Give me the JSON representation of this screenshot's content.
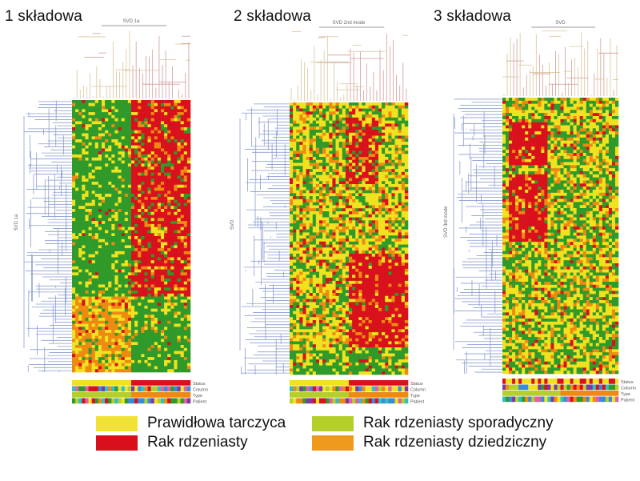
{
  "panels": [
    {
      "id": "p1",
      "title": "1 składowa",
      "top_label": "SVD 1a",
      "side_label": "SVD 1a",
      "row_labels": [
        "Status",
        "Column",
        "Type",
        "Patient"
      ]
    },
    {
      "id": "p2",
      "title": "2 składowa",
      "top_label": "SVD 2nd mode",
      "side_label": "SVD",
      "row_labels": [
        "Status",
        "Column",
        "Type",
        "Patient"
      ]
    },
    {
      "id": "p3",
      "title": "3 składowa",
      "top_label": "SVD",
      "side_label": "SVD 3rd mode",
      "row_labels": [
        "Status",
        "Column",
        "Type",
        "Patient"
      ]
    }
  ],
  "legend": [
    {
      "label": "Prawidłowa tarczyca",
      "color": "#f2e236"
    },
    {
      "label": "Rak rdzeniasty sporadyczny",
      "color": "#b5cf2a"
    },
    {
      "label": "Rak rdzeniasty",
      "color": "#d8101c"
    },
    {
      "label": "Rak rdzeniasty dziedziczny",
      "color": "#ef9a1a"
    }
  ],
  "colors": {
    "heat_green": "#2f9a2a",
    "heat_yellow": "#f0e21e",
    "heat_orange": "#ee8a12",
    "heat_red": "#d8111c",
    "dendrogram_blue": "#8c9ed0",
    "dendrogram_tan": "#d8c59a",
    "dendrogram_red": "#d39a9a"
  }
}
